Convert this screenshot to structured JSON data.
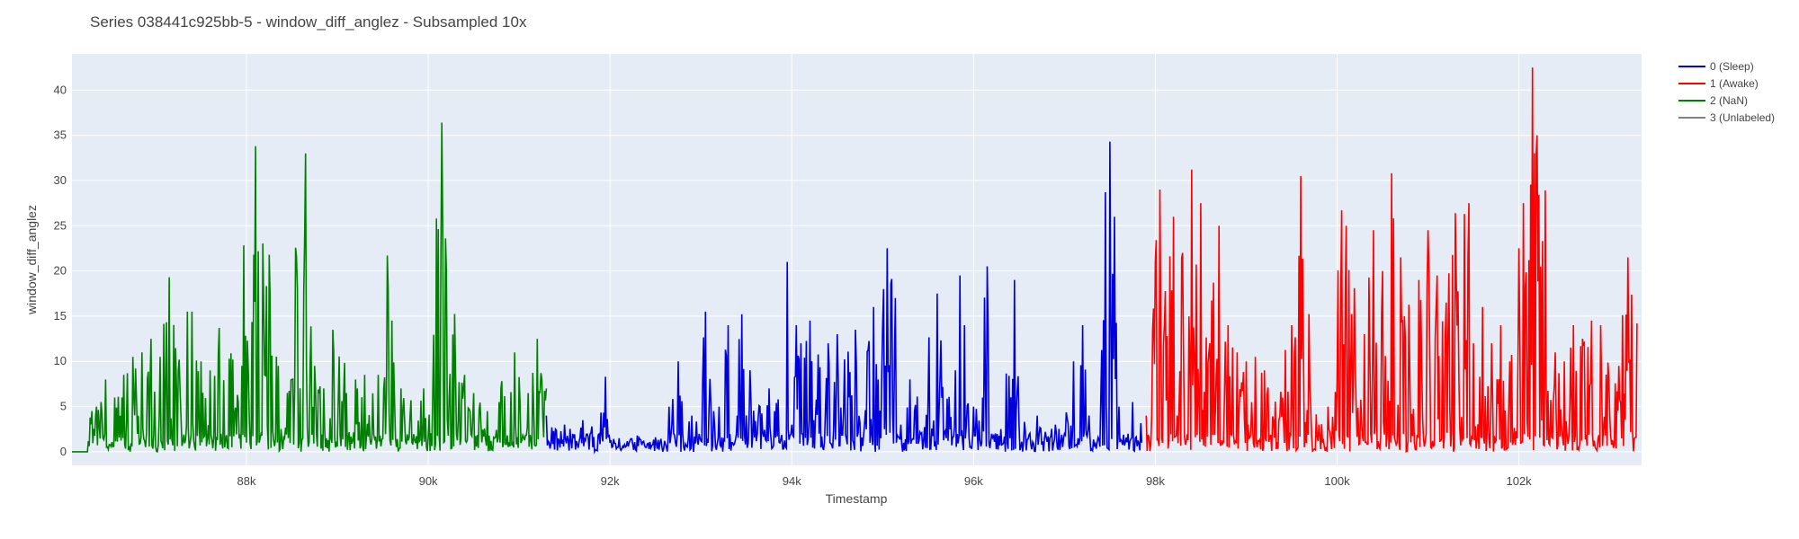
{
  "chart_data": {
    "type": "line",
    "title": "Series 038441c925bb-5 - window_diff_anglez - Subsampled 10x",
    "xlabel": "Timestamp",
    "ylabel": "window_diff_anglez",
    "xlim": [
      86080,
      103350
    ],
    "ylim": [
      -1.5,
      44
    ],
    "x_ticks": [
      88000,
      90000,
      92000,
      94000,
      96000,
      98000,
      100000,
      102000
    ],
    "x_tick_labels": [
      "88k",
      "90k",
      "92k",
      "94k",
      "96k",
      "98k",
      "100k",
      "102k"
    ],
    "y_ticks": [
      0,
      5,
      10,
      15,
      20,
      25,
      30,
      35,
      40
    ],
    "y_tick_labels": [
      "0",
      "5",
      "10",
      "15",
      "20",
      "25",
      "30",
      "35",
      "40"
    ],
    "grid": true,
    "legend_position": "top-right",
    "series": [
      {
        "name": "0 (Sleep)",
        "color": "#0000dd",
        "x_range": [
          91300,
          97850
        ],
        "points": [
          [
            91300,
            4
          ],
          [
            91400,
            2.5
          ],
          [
            91500,
            3
          ],
          [
            91600,
            1.5
          ],
          [
            91700,
            3.5
          ],
          [
            91800,
            2.8
          ],
          [
            91950,
            8.3
          ],
          [
            92000,
            1
          ],
          [
            92100,
            1.5
          ],
          [
            92200,
            0.6
          ],
          [
            92300,
            1.8
          ],
          [
            92400,
            0.5
          ],
          [
            92500,
            1.6
          ],
          [
            92600,
            1.2
          ],
          [
            92650,
            5
          ],
          [
            92750,
            10
          ],
          [
            92800,
            2
          ],
          [
            92900,
            4
          ],
          [
            93000,
            1.2
          ],
          [
            93050,
            15.5
          ],
          [
            93150,
            3
          ],
          [
            93200,
            5
          ],
          [
            93300,
            14
          ],
          [
            93400,
            4
          ],
          [
            93450,
            15.2
          ],
          [
            93550,
            6
          ],
          [
            93650,
            5
          ],
          [
            93750,
            7
          ],
          [
            93850,
            5.8
          ],
          [
            93950,
            21
          ],
          [
            94000,
            3
          ],
          [
            94050,
            14
          ],
          [
            94100,
            12
          ],
          [
            94200,
            14.5
          ],
          [
            94300,
            2
          ],
          [
            94400,
            12
          ],
          [
            94500,
            13
          ],
          [
            94600,
            1.5
          ],
          [
            94700,
            13.5
          ],
          [
            94800,
            3
          ],
          [
            94900,
            16
          ],
          [
            94950,
            8
          ],
          [
            95050,
            22.5
          ],
          [
            95150,
            1
          ],
          [
            95200,
            3
          ],
          [
            95300,
            8
          ],
          [
            95400,
            1.2
          ],
          [
            95500,
            6
          ],
          [
            95600,
            17.5
          ],
          [
            95700,
            1.5
          ],
          [
            95800,
            9
          ],
          [
            95850,
            19.5
          ],
          [
            95900,
            14
          ],
          [
            96000,
            5
          ],
          [
            96100,
            6
          ],
          [
            96150,
            20.5
          ],
          [
            96200,
            2
          ],
          [
            96300,
            2.5
          ],
          [
            96450,
            19
          ],
          [
            96500,
            3
          ],
          [
            96550,
            1
          ],
          [
            96700,
            4
          ],
          [
            96800,
            1.5
          ],
          [
            96900,
            3
          ],
          [
            97000,
            2
          ],
          [
            97100,
            10
          ],
          [
            97200,
            14
          ],
          [
            97300,
            0.3
          ],
          [
            97400,
            6
          ],
          [
            97450,
            28.7
          ],
          [
            97500,
            34.3
          ],
          [
            97550,
            26
          ],
          [
            97600,
            5
          ],
          [
            97700,
            2
          ],
          [
            97750,
            5.5
          ],
          [
            97850,
            1
          ]
        ]
      },
      {
        "name": "1 (Awake)",
        "color": "#ff0000",
        "x_range": [
          97850,
          103300
        ],
        "points": [
          [
            97900,
            4
          ],
          [
            98000,
            21
          ],
          [
            98050,
            29
          ],
          [
            98100,
            14
          ],
          [
            98200,
            26
          ],
          [
            98300,
            22
          ],
          [
            98400,
            31.2
          ],
          [
            98450,
            20.7
          ],
          [
            98500,
            27.5
          ],
          [
            98600,
            12
          ],
          [
            98700,
            25
          ],
          [
            98800,
            14
          ],
          [
            98900,
            11
          ],
          [
            99000,
            10
          ],
          [
            99100,
            10.5
          ],
          [
            99200,
            9
          ],
          [
            99400,
            6
          ],
          [
            99500,
            14
          ],
          [
            99600,
            30.5
          ],
          [
            99700,
            7
          ],
          [
            99800,
            3
          ],
          [
            99900,
            5
          ],
          [
            100000,
            8
          ],
          [
            100050,
            26.7
          ],
          [
            100100,
            25
          ],
          [
            100200,
            9.5
          ],
          [
            100300,
            13
          ],
          [
            100400,
            24.5
          ],
          [
            100500,
            20
          ],
          [
            100600,
            30.8
          ],
          [
            100700,
            21.5
          ],
          [
            100800,
            9
          ],
          [
            100900,
            19
          ],
          [
            101000,
            24.5
          ],
          [
            101100,
            19.5
          ],
          [
            101200,
            16.5
          ],
          [
            101300,
            26.4
          ],
          [
            101400,
            26.3
          ],
          [
            101450,
            27.5
          ],
          [
            101500,
            12
          ],
          [
            101600,
            16
          ],
          [
            101700,
            12
          ],
          [
            101800,
            14
          ],
          [
            101900,
            10
          ],
          [
            102000,
            22.5
          ],
          [
            102050,
            27.5
          ],
          [
            102150,
            42.5
          ],
          [
            102200,
            35
          ],
          [
            102300,
            7
          ],
          [
            102400,
            11
          ],
          [
            102500,
            10
          ],
          [
            102600,
            14
          ],
          [
            102700,
            12.5
          ],
          [
            102800,
            14.5
          ],
          [
            102900,
            14
          ],
          [
            103000,
            4
          ],
          [
            103100,
            9.5
          ],
          [
            103200,
            21.5
          ],
          [
            103300,
            14.2
          ]
        ]
      },
      {
        "name": "2 (NaN)",
        "color": "#008000",
        "x_range": [
          86080,
          91300
        ],
        "points": [
          [
            86080,
            0
          ],
          [
            86250,
            0
          ],
          [
            86300,
            4.5
          ],
          [
            86350,
            5
          ],
          [
            86400,
            5.5
          ],
          [
            86450,
            8
          ],
          [
            86550,
            6
          ],
          [
            86650,
            8.5
          ],
          [
            86750,
            10.5
          ],
          [
            86850,
            11
          ],
          [
            86950,
            12.5
          ],
          [
            87050,
            10.5
          ],
          [
            87150,
            19.3
          ],
          [
            87250,
            9
          ],
          [
            87350,
            15.5
          ],
          [
            87400,
            15.5
          ],
          [
            87500,
            10
          ],
          [
            87600,
            9
          ],
          [
            87700,
            13.7
          ],
          [
            87850,
            10.2
          ],
          [
            87950,
            9.5
          ],
          [
            88100,
            33.8
          ],
          [
            88200,
            8.5
          ],
          [
            88250,
            21.8
          ],
          [
            88350,
            9.5
          ],
          [
            88500,
            8
          ],
          [
            88650,
            33
          ],
          [
            88750,
            9.5
          ],
          [
            88850,
            7
          ],
          [
            88950,
            13.5
          ],
          [
            89100,
            6.5
          ],
          [
            89200,
            8
          ],
          [
            89300,
            8.5
          ],
          [
            89450,
            8.5
          ],
          [
            89550,
            21.7
          ],
          [
            89600,
            14.5
          ],
          [
            89700,
            7
          ],
          [
            89800,
            4
          ],
          [
            89950,
            7
          ],
          [
            90050,
            6.5
          ],
          [
            90150,
            36.4
          ],
          [
            90200,
            20
          ],
          [
            90300,
            9.2
          ],
          [
            90400,
            8.5
          ],
          [
            90500,
            6.5
          ],
          [
            90650,
            4.5
          ],
          [
            90800,
            7
          ],
          [
            90950,
            11
          ],
          [
            91100,
            6.5
          ],
          [
            91200,
            12.5
          ],
          [
            91250,
            8
          ],
          [
            91300,
            7
          ]
        ]
      },
      {
        "name": "3 (Unlabeled)",
        "color": "#808080",
        "x_range": [],
        "points": []
      }
    ]
  }
}
